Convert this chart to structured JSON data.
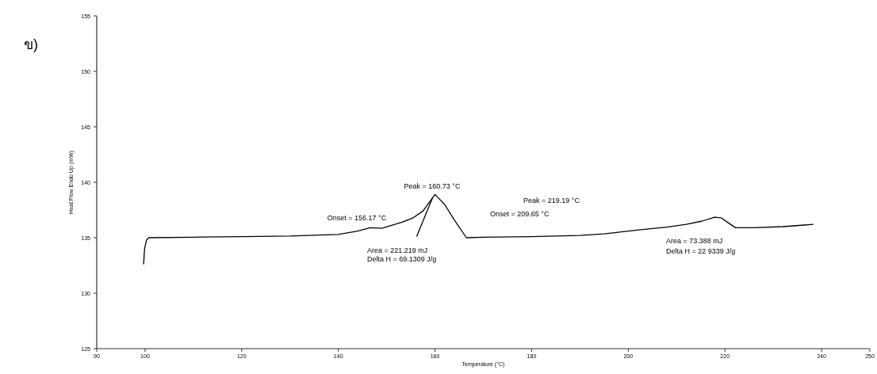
{
  "chart_data": {
    "type": "line",
    "title": "ข)",
    "xlabel": "Temperature (°C)",
    "ylabel": "Heat Flow Endo Up (mW)",
    "xlim": [
      90,
      250
    ],
    "xticks": [
      90,
      100,
      120,
      140,
      160,
      180,
      200,
      220,
      240,
      250
    ],
    "ylim": [
      125,
      155
    ],
    "yticks": [
      125,
      130,
      135,
      140,
      145,
      150,
      155
    ],
    "grid": false,
    "marker": "none",
    "line_style": "solid",
    "series": [
      {
        "color": "#000000",
        "x": [
          99.7,
          99.9,
          100.3,
          100.8,
          110,
          120,
          130,
          140,
          144,
          146.6,
          149,
          153.2,
          155.5,
          157.5,
          159,
          160.0,
          162,
          164,
          166.5,
          170,
          180,
          190,
          195,
          202.2,
          208,
          212,
          215.3,
          217.9,
          219.2,
          220.5,
          222.2,
          226,
          232,
          238.3
        ],
        "values": [
          132.6,
          134.0,
          134.8,
          135.0,
          135.05,
          135.1,
          135.15,
          135.3,
          135.6,
          135.9,
          135.85,
          136.4,
          136.8,
          137.4,
          138.3,
          138.9,
          138.0,
          136.6,
          135.0,
          135.05,
          135.1,
          135.2,
          135.35,
          135.7,
          135.95,
          136.2,
          136.5,
          136.85,
          136.8,
          136.4,
          135.9,
          135.9,
          136.0,
          136.2
        ]
      },
      {
        "color": "#000000",
        "x": [
          156.2,
          159.5
        ],
        "values": [
          135.1,
          138.6
        ]
      }
    ],
    "annotations": [
      "Onset = 156.17 °C",
      "Peak = 160.73 °C",
      "Area = 221.219 mJ",
      "Delta H = 69.1309 J/g",
      "Onset = 209.65 °C",
      "Peak = 219.19 °C",
      "Area = 73.388 mJ",
      "Delta H = 22 9339 J/g"
    ]
  }
}
